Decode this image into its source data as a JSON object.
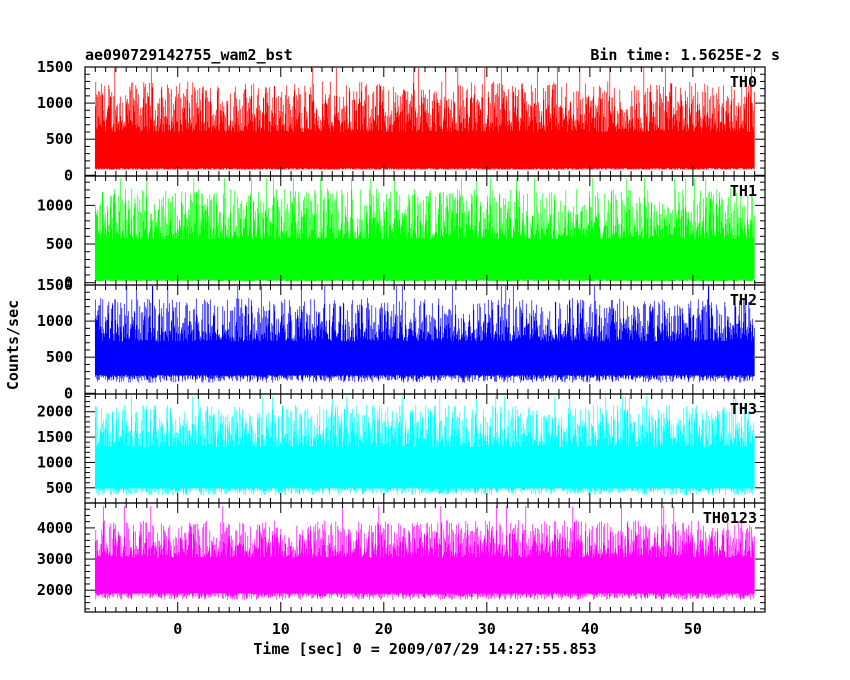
{
  "chart_data": {
    "type": "line",
    "title": "ae090729142755_wam2_bst",
    "subtitle": "Bin time: 1.5625E-2 s",
    "xlabel": "Time [sec] 0 = 2009/07/29 14:27:55.853",
    "ylabel": "Counts/sec",
    "xlim": [
      -9,
      57
    ],
    "x_range_data": [
      -8,
      56
    ],
    "xticks": [
      0,
      10,
      20,
      30,
      40,
      50
    ],
    "grid": false,
    "panels": [
      {
        "name": "TH0",
        "color": "#ff0000",
        "ylim": [
          -10,
          1500
        ],
        "yticks": [
          0,
          500,
          1000,
          1500
        ],
        "baseline": 100,
        "mean": 600,
        "spread": 350,
        "min": 80,
        "max": 1500
      },
      {
        "name": "TH1",
        "color": "#00ff00",
        "ylim": [
          -30,
          1380
        ],
        "yticks": [
          0,
          500,
          1000
        ],
        "baseline": 40,
        "mean": 560,
        "spread": 330,
        "min": 20,
        "max": 1350
      },
      {
        "name": "TH2",
        "color": "#0000ff",
        "ylim": [
          -10,
          1500
        ],
        "yticks": [
          0,
          500,
          1000,
          1500
        ],
        "baseline": 250,
        "mean": 720,
        "spread": 300,
        "min": 80,
        "max": 1500
      },
      {
        "name": "TH3",
        "color": "#00ffff",
        "ylim": [
          200,
          2350
        ],
        "yticks": [
          500,
          1000,
          1500,
          2000
        ],
        "baseline": 500,
        "mean": 1300,
        "spread": 420,
        "min": 300,
        "max": 2300
      },
      {
        "name": "TH0123",
        "color": "#ff00ff",
        "ylim": [
          1300,
          4800
        ],
        "yticks": [
          2000,
          3000,
          4000
        ],
        "baseline": 1900,
        "mean": 3050,
        "spread": 600,
        "min": 1350,
        "max": 4700
      }
    ]
  }
}
